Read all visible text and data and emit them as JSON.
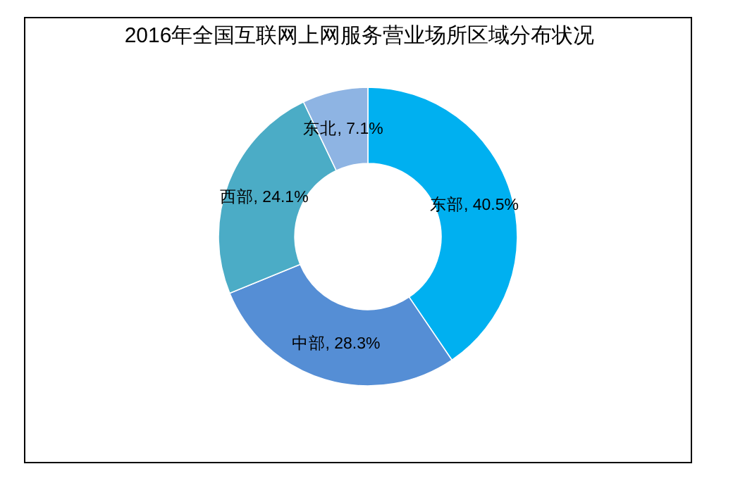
{
  "chart_data": {
    "type": "donut",
    "title": "2016年全国互联网上网服务营业场所区域分布状况",
    "categories": [
      "东部",
      "中部",
      "西部",
      "东北"
    ],
    "values": [
      40.5,
      28.3,
      24.1,
      7.1
    ],
    "colors": [
      "#00b0f0",
      "#558ed5",
      "#4bacc6",
      "#8eb4e3"
    ],
    "value_labels": [
      ", 40.5%",
      ", 28.3%",
      ", 24.1%",
      ", 7.1%"
    ],
    "legend": false
  }
}
